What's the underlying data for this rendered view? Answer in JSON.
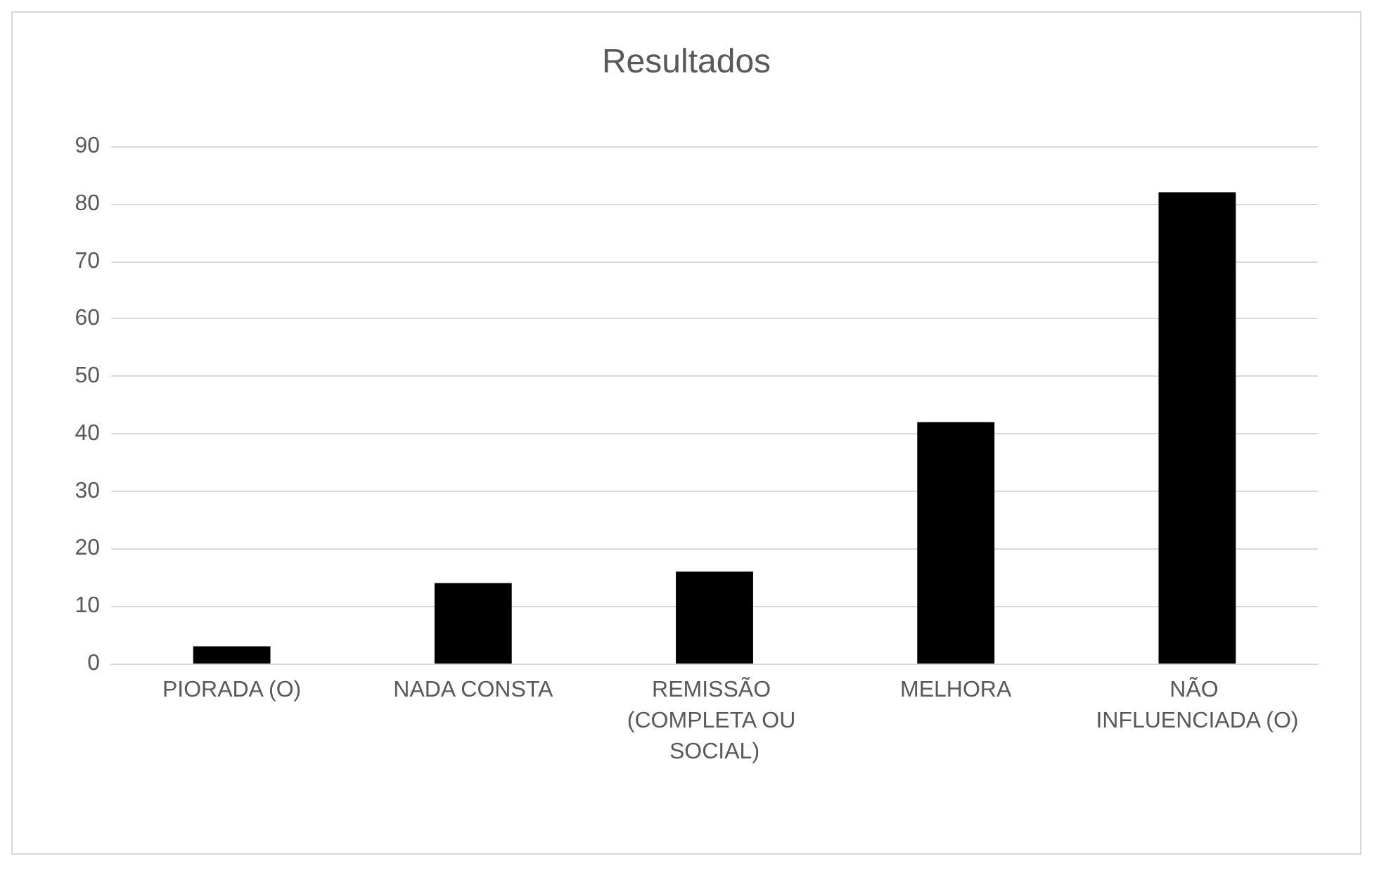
{
  "chart_data": {
    "type": "bar",
    "title": "Resultados",
    "categories": [
      "PIORADA (O)",
      "NADA CONSTA",
      "REMISSÃO (COMPLETA OU SOCIAL)",
      "MELHORA",
      "NÃO INFLUENCIADA (O)"
    ],
    "values": [
      3,
      14,
      16,
      42,
      82
    ],
    "color": "#000000",
    "ylim": [
      0,
      90
    ],
    "yticks": [
      0,
      10,
      20,
      30,
      40,
      50,
      60,
      70,
      80,
      90
    ],
    "grid": "y"
  }
}
